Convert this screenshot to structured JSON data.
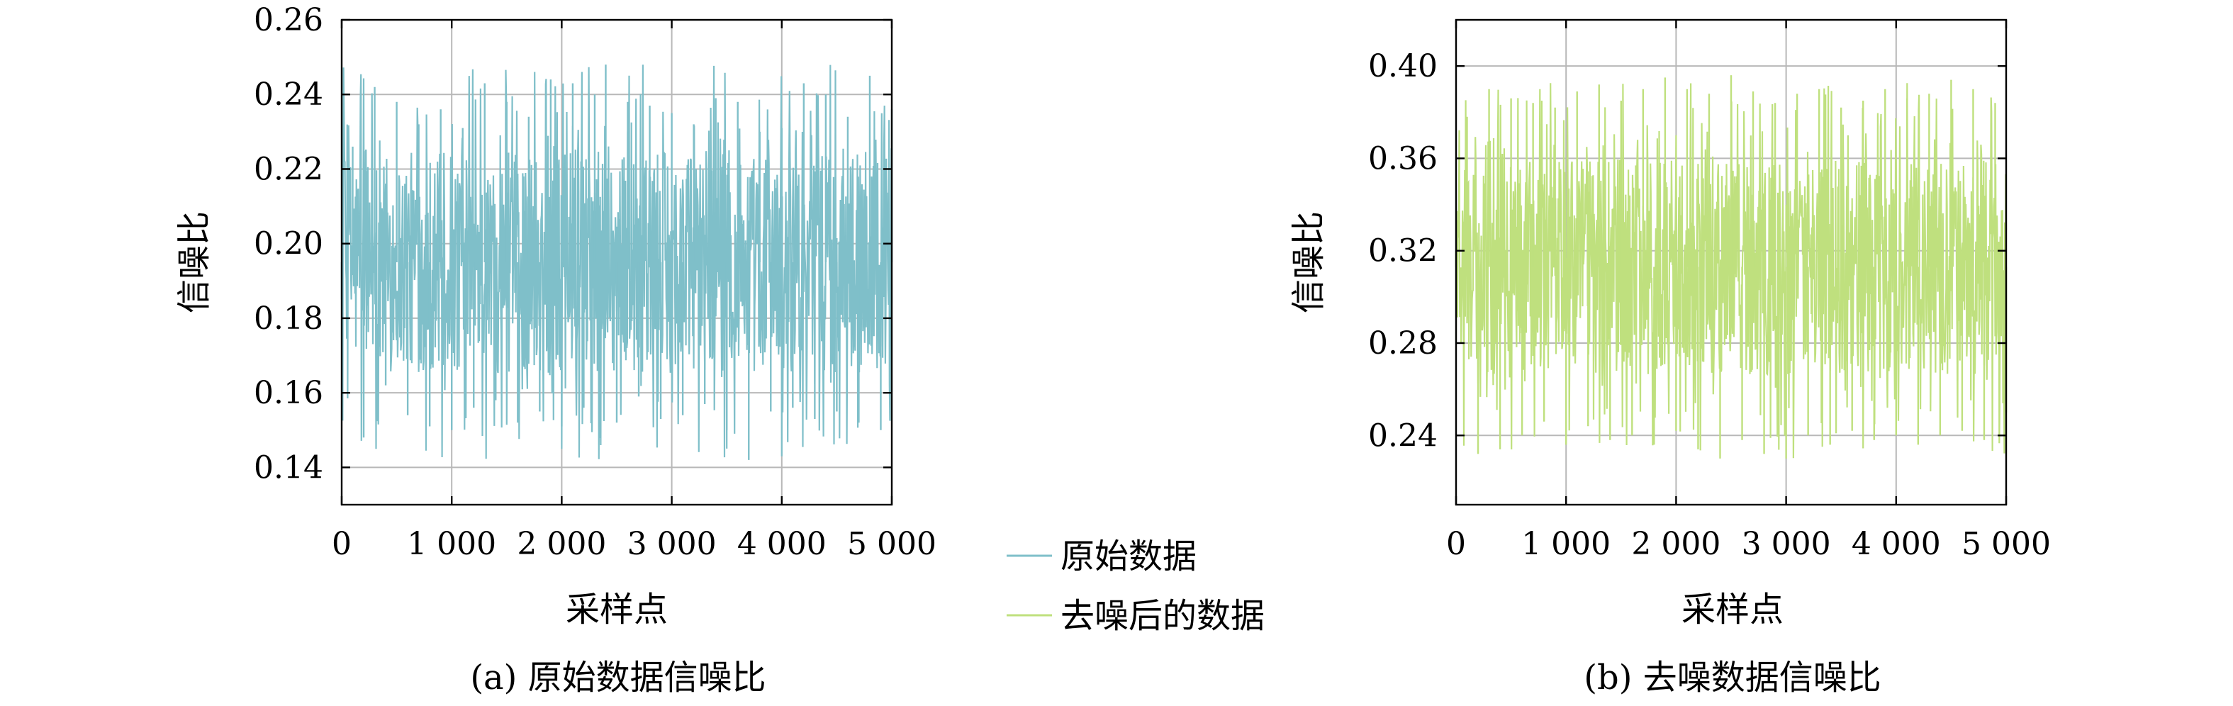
{
  "legend": {
    "items": [
      {
        "label": "原始数据",
        "color": "#7fbfc9"
      },
      {
        "label": "去噪后的数据",
        "color": "#bfe07e"
      }
    ]
  },
  "chart_data": [
    {
      "type": "line",
      "caption": "(a) 原始数据信噪比",
      "xlabel": "采样点",
      "ylabel": "信噪比",
      "xlim": [
        0,
        5000
      ],
      "ylim": [
        0.13,
        0.26
      ],
      "xticks": [
        0,
        1000,
        2000,
        3000,
        4000,
        5000
      ],
      "xtick_labels": [
        "0",
        "1 000",
        "2 000",
        "3 000",
        "4 000",
        "5 000"
      ],
      "yticks": [
        0.14,
        0.16,
        0.18,
        0.2,
        0.22,
        0.24,
        0.26
      ],
      "ytick_labels": [
        "0.14",
        "0.16",
        "0.18",
        "0.20",
        "0.22",
        "0.24",
        "0.26"
      ],
      "grid": true,
      "color": "#7fbfc9",
      "series": [
        {
          "name": "原始数据",
          "x": [
            0,
            100,
            200,
            300,
            400,
            500,
            600,
            700,
            800,
            900,
            1000,
            1100,
            1200,
            1300,
            1400,
            1500,
            1600,
            1700,
            1800,
            1900,
            2000,
            2100,
            2200,
            2300,
            2400,
            2500,
            2600,
            2700,
            2800,
            2900,
            3000,
            3100,
            3200,
            3300,
            3400,
            3500,
            3600,
            3700,
            3800,
            3900,
            4000,
            4100,
            4200,
            4300,
            4400,
            4500,
            4600,
            4700,
            4800,
            4900,
            5000
          ],
          "y": [
            0.185,
            0.226,
            0.148,
            0.242,
            0.162,
            0.238,
            0.154,
            0.232,
            0.151,
            0.236,
            0.15,
            0.231,
            0.156,
            0.243,
            0.158,
            0.238,
            0.152,
            0.234,
            0.155,
            0.244,
            0.151,
            0.243,
            0.156,
            0.24,
            0.248,
            0.152,
            0.238,
            0.159,
            0.237,
            0.153,
            0.235,
            0.154,
            0.232,
            0.157,
            0.239,
            0.15,
            0.238,
            0.142,
            0.23,
            0.155,
            0.231,
            0.156,
            0.243,
            0.153,
            0.24,
            0.155,
            0.234,
            0.152,
            0.245,
            0.15,
            0.236
          ],
          "y_range_shown": [
            0.142,
            0.248
          ]
        }
      ]
    },
    {
      "type": "line",
      "caption": "(b) 去噪数据信噪比",
      "xlabel": "采样点",
      "ylabel": "信噪比",
      "xlim": [
        0,
        5000
      ],
      "ylim": [
        0.21,
        0.42
      ],
      "xticks": [
        0,
        1000,
        2000,
        3000,
        4000,
        5000
      ],
      "xtick_labels": [
        "0",
        "1 000",
        "2 000",
        "3 000",
        "4 000",
        "5 000"
      ],
      "yticks": [
        0.24,
        0.28,
        0.32,
        0.36,
        0.4
      ],
      "ytick_labels": [
        "0.24",
        "0.28",
        "0.32",
        "0.36",
        "0.40"
      ],
      "grid": true,
      "color": "#bfe07e",
      "series": [
        {
          "name": "去噪后的数据",
          "x": [
            0,
            100,
            200,
            300,
            400,
            500,
            600,
            700,
            800,
            900,
            1000,
            1100,
            1200,
            1300,
            1400,
            1500,
            1600,
            1700,
            1800,
            1900,
            2000,
            2100,
            2200,
            2300,
            2400,
            2500,
            2600,
            2700,
            2800,
            2900,
            3000,
            3100,
            3200,
            3300,
            3400,
            3500,
            3600,
            3700,
            3800,
            3900,
            4000,
            4100,
            4200,
            4300,
            4400,
            4500,
            4600,
            4700,
            4800,
            4900,
            5000
          ],
          "y": [
            0.32,
            0.378,
            0.232,
            0.39,
            0.234,
            0.386,
            0.24,
            0.384,
            0.246,
            0.382,
            0.236,
            0.389,
            0.244,
            0.392,
            0.238,
            0.385,
            0.24,
            0.39,
            0.236,
            0.395,
            0.242,
            0.39,
            0.234,
            0.388,
            0.23,
            0.396,
            0.238,
            0.389,
            0.232,
            0.384,
            0.23,
            0.388,
            0.24,
            0.39,
            0.236,
            0.382,
            0.242,
            0.385,
            0.238,
            0.39,
            0.24,
            0.386,
            0.236,
            0.388,
            0.24,
            0.394,
            0.242,
            0.39,
            0.238,
            0.384,
            0.25
          ],
          "y_range_shown": [
            0.23,
            0.396
          ]
        }
      ]
    }
  ]
}
